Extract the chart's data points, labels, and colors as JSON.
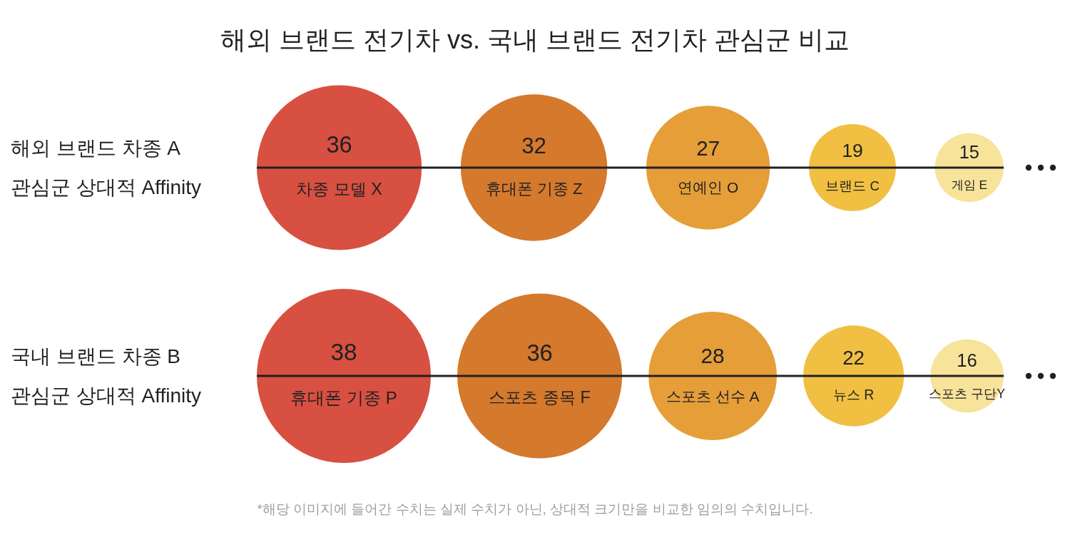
{
  "chart_data": [
    {
      "type": "other",
      "title": "해외 브랜드 전기차 vs. 국내 브랜드 전기차 관심군 비교",
      "ylabel": "해외 브랜드 차종 A\n관심군 상대적 Affinity",
      "categories": [
        "차종 모델 X",
        "휴대폰 기종 Z",
        "연예인 O",
        "브랜드 C",
        "게임 E"
      ],
      "values": [
        36,
        32,
        27,
        19,
        15
      ],
      "colors": [
        "#d85041",
        "#d5792d",
        "#e59e38",
        "#f1c042",
        "#f8e39b"
      ],
      "data_labels": true
    },
    {
      "type": "other",
      "ylabel": "국내 브랜드 차종 B\n관심군 상대적 Affinity",
      "categories": [
        "휴대폰 기종 P",
        "스포츠 종목 F",
        "스포츠 선수 A",
        "뉴스 R",
        "스포츠 구단Y"
      ],
      "values": [
        38,
        36,
        28,
        22,
        16
      ],
      "colors": [
        "#d85041",
        "#d5792d",
        "#e59e38",
        "#f1c042",
        "#f8e39b"
      ],
      "data_labels": true,
      "annotations": [
        "*해당 이미지에 들어간 수치는 실제 수치가 아닌, 상대적 크기만을 비교한 임의의 수치입니다."
      ]
    }
  ]
}
